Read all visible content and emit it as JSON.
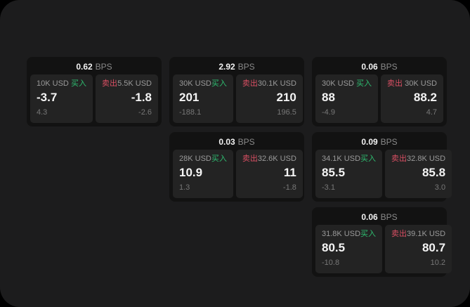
{
  "theme": {
    "page_bg": "#000000",
    "screen_bg": "#1c1c1d",
    "card_bg": "#121212",
    "panel_bg": "#232323",
    "buy_color": "#2ebd70",
    "sell_color": "#d94f63"
  },
  "cards": [
    {
      "bps_value": "0.62",
      "bps_unit": "BPS",
      "buy": {
        "amount": "10K USD",
        "side_label": "买入",
        "value": "-3.7",
        "sub_value": "4.3"
      },
      "sell": {
        "side_label": "卖出",
        "amount": "5.5K USD",
        "value": "-1.8",
        "sub_value": "-2.6"
      }
    },
    {
      "bps_value": "2.92",
      "bps_unit": "BPS",
      "buy": {
        "amount": "30K USD",
        "side_label": "买入",
        "value": "201",
        "sub_value": "-188.1"
      },
      "sell": {
        "side_label": "卖出",
        "amount": "30.1K USD",
        "value": "210",
        "sub_value": "196.5"
      }
    },
    {
      "bps_value": "0.06",
      "bps_unit": "BPS",
      "buy": {
        "amount": "30K USD",
        "side_label": "买入",
        "value": "88",
        "sub_value": "-4.9"
      },
      "sell": {
        "side_label": "卖出",
        "amount": "30K USD",
        "value": "88.2",
        "sub_value": "4.7"
      }
    },
    {
      "bps_value": "0.03",
      "bps_unit": "BPS",
      "buy": {
        "amount": "28K USD",
        "side_label": "买入",
        "value": "10.9",
        "sub_value": "1.3"
      },
      "sell": {
        "side_label": "卖出",
        "amount": "32.6K USD",
        "value": "11",
        "sub_value": "-1.8"
      }
    },
    {
      "bps_value": "0.09",
      "bps_unit": "BPS",
      "buy": {
        "amount": "34.1K USD",
        "side_label": "买入",
        "value": "85.5",
        "sub_value": "-3.1"
      },
      "sell": {
        "side_label": "卖出",
        "amount": "32.8K USD",
        "value": "85.8",
        "sub_value": "3.0"
      }
    },
    {
      "bps_value": "0.06",
      "bps_unit": "BPS",
      "buy": {
        "amount": "31.8K USD",
        "side_label": "买入",
        "value": "80.5",
        "sub_value": "-10.8"
      },
      "sell": {
        "side_label": "卖出",
        "amount": "39.1K USD",
        "value": "80.7",
        "sub_value": "10.2"
      }
    }
  ]
}
